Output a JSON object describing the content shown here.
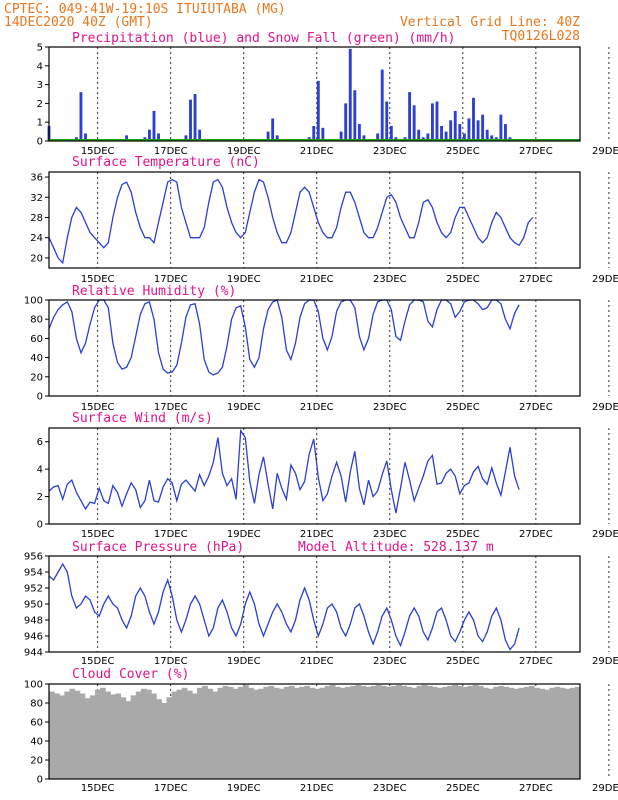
{
  "header": {
    "left_line1": "CPTEC:   049:41W-19:10S  ITUIUTABA (MG)",
    "left_line2": "14DEC2020 40Z (GMT)",
    "right_line1": "Vertical Grid Line: 40Z",
    "right_line2": "TQ0126L028"
  },
  "date_labels": [
    "15DEC",
    "17DEC",
    "19DEC",
    "21DEC",
    "23DEC",
    "25DEC",
    "27DEC",
    "29DEC"
  ],
  "colors": {
    "title": "#e0148c",
    "header": "#e8771e",
    "line": "#2b3fd6",
    "precip": "#2b3fd6",
    "snow": "#1fa31f",
    "cloud": "#a9a9a9"
  },
  "chart_data": [
    {
      "id": "precip",
      "type": "bar",
      "title": "Precipitation (blue) and Snow Fall (green) (mm/h)",
      "ylim": [
        0,
        5
      ],
      "yticks": [
        0,
        1,
        2,
        3,
        4,
        5
      ],
      "x_start": "14DEC 16Z",
      "x_step_hours": 3,
      "series": [
        {
          "name": "Precipitation (blue)",
          "values": [
            0.8,
            0.1,
            0,
            0,
            0,
            0,
            0.2,
            2.6,
            0.4,
            0,
            0,
            0,
            0,
            0,
            0,
            0,
            0.1,
            0.3,
            0,
            0,
            0,
            0.2,
            0.6,
            1.6,
            0.4,
            0,
            0,
            0,
            0,
            0,
            0.3,
            2.2,
            2.5,
            0.6,
            0,
            0,
            0,
            0,
            0,
            0,
            0,
            0,
            0,
            0,
            0,
            0,
            0,
            0,
            0.5,
            1.2,
            0.3,
            0,
            0,
            0,
            0,
            0,
            0,
            0.2,
            0.8,
            3.2,
            0.7,
            0.1,
            0,
            0,
            0.5,
            2.0,
            4.9,
            2.7,
            0.9,
            0.3,
            0,
            0,
            0.4,
            3.8,
            2.1,
            0.8,
            0.2,
            0,
            0.2,
            2.6,
            1.9,
            0.6,
            0.2,
            0.4,
            2.0,
            2.1,
            0.8,
            0.5,
            1.1,
            1.6,
            0.9,
            0.4,
            1.2,
            2.3,
            1.1,
            1.4,
            0.6,
            0.3,
            0.2,
            1.4,
            0.9,
            0.2
          ]
        },
        {
          "name": "Snow Fall (green)",
          "values": [
            0,
            0,
            0,
            0,
            0,
            0,
            0,
            0,
            0,
            0,
            0,
            0,
            0,
            0,
            0,
            0,
            0,
            0,
            0,
            0,
            0,
            0,
            0,
            0,
            0,
            0,
            0,
            0,
            0,
            0,
            0,
            0,
            0,
            0,
            0,
            0,
            0,
            0,
            0,
            0,
            0,
            0,
            0,
            0,
            0,
            0,
            0,
            0,
            0,
            0,
            0,
            0,
            0,
            0,
            0,
            0,
            0,
            0,
            0,
            0,
            0,
            0,
            0,
            0,
            0,
            0,
            0,
            0,
            0,
            0,
            0,
            0,
            0,
            0,
            0,
            0,
            0,
            0,
            0,
            0,
            0,
            0,
            0,
            0,
            0,
            0,
            0,
            0,
            0,
            0,
            0,
            0,
            0,
            0,
            0,
            0,
            0,
            0,
            0,
            0,
            0,
            0,
            0,
            0
          ]
        }
      ]
    },
    {
      "id": "temp",
      "type": "line",
      "title": "Surface Temperature (nC)",
      "ylim": [
        18,
        37
      ],
      "yticks": [
        20,
        24,
        28,
        32,
        36
      ],
      "x_start": "14DEC 16Z",
      "x_step_hours": 3,
      "values": [
        24,
        22,
        20,
        19,
        24,
        28,
        30,
        29,
        27,
        25,
        24,
        23,
        22,
        23,
        28,
        32,
        34.5,
        35,
        33,
        29,
        26,
        24,
        24,
        23,
        27,
        31,
        35,
        35.5,
        35,
        30,
        27,
        24,
        24,
        24,
        26,
        31,
        35,
        35.5,
        34,
        30,
        27,
        25,
        24,
        25,
        29,
        33,
        35.5,
        35,
        32,
        28,
        25,
        23,
        23,
        25,
        29,
        33,
        34,
        33,
        30,
        27,
        25,
        24,
        24,
        26,
        30,
        33,
        33,
        31,
        28,
        25,
        24,
        24,
        26,
        29,
        32,
        32.5,
        31,
        28,
        26,
        24,
        24,
        27,
        31,
        31.5,
        30,
        27,
        25,
        24,
        25,
        28,
        30,
        30,
        28,
        26,
        24,
        23,
        24,
        27,
        29,
        28,
        26,
        24,
        23,
        22.5,
        24,
        27,
        28
      ]
    },
    {
      "id": "rh",
      "type": "line",
      "title": "Relative Humidity (%)",
      "ylim": [
        0,
        100
      ],
      "yticks": [
        0,
        20,
        40,
        60,
        80,
        100
      ],
      "x_start": "14DEC 16Z",
      "x_step_hours": 3,
      "values": [
        70,
        82,
        90,
        95,
        98,
        88,
        60,
        45,
        55,
        75,
        92,
        100,
        100,
        92,
        55,
        35,
        28,
        30,
        40,
        62,
        85,
        96,
        98,
        80,
        45,
        28,
        24,
        25,
        32,
        55,
        82,
        95,
        96,
        75,
        38,
        25,
        22,
        24,
        30,
        52,
        80,
        92,
        94,
        72,
        38,
        30,
        40,
        70,
        90,
        98,
        100,
        82,
        48,
        38,
        55,
        82,
        96,
        100,
        100,
        88,
        60,
        48,
        62,
        88,
        98,
        100,
        100,
        92,
        62,
        48,
        60,
        85,
        98,
        100,
        100,
        90,
        62,
        58,
        78,
        95,
        100,
        100,
        98,
        78,
        72,
        90,
        100,
        100,
        96,
        82,
        88,
        98,
        100,
        100,
        96,
        90,
        92,
        100,
        100,
        96,
        80,
        70,
        86,
        95
      ]
    },
    {
      "id": "wind",
      "type": "line",
      "title": "Surface Wind (m/s)",
      "ylim": [
        0,
        7
      ],
      "yticks": [
        0,
        2,
        4,
        6
      ],
      "x_start": "14DEC 16Z",
      "x_step_hours": 3,
      "values": [
        2.4,
        2.7,
        2.8,
        1.8,
        2.9,
        3.2,
        2.3,
        1.7,
        1.1,
        1.6,
        1.5,
        2.6,
        1.7,
        1.5,
        2.8,
        2.3,
        1.3,
        2.2,
        3.0,
        2.5,
        1.2,
        1.7,
        3.2,
        1.7,
        1.6,
        2.7,
        3.3,
        3.0,
        1.7,
        2.9,
        3.2,
        2.8,
        2.4,
        3.6,
        2.8,
        3.5,
        4.5,
        6.3,
        3.7,
        2.8,
        3.3,
        1.8,
        6.8,
        6.3,
        3.1,
        1.5,
        3.6,
        4.9,
        2.9,
        1.1,
        3.7,
        2.6,
        1.8,
        4.3,
        3.7,
        2.5,
        3.1,
        5.1,
        6.2,
        3.4,
        1.7,
        2.2,
        3.5,
        4.5,
        3.5,
        1.6,
        3.8,
        5.3,
        2.6,
        1.4,
        3.2,
        2.0,
        2.4,
        3.6,
        4.6,
        2.5,
        0.8,
        2.6,
        4.5,
        3.2,
        1.7,
        2.6,
        3.5,
        4.6,
        5.0,
        2.9,
        3.0,
        3.7,
        4.0,
        3.5,
        2.2,
        2.8,
        3.0,
        3.8,
        4.2,
        3.3,
        2.9,
        4.1,
        3.0,
        2.1,
        3.8,
        5.6,
        3.5,
        2.5
      ]
    },
    {
      "id": "pres",
      "type": "line",
      "title": "Surface Pressure (hPa)",
      "annotation": "Model Altitude: 528.137 m",
      "ylim": [
        944,
        956
      ],
      "yticks": [
        944,
        946,
        948,
        950,
        952,
        954,
        956
      ],
      "x_start": "14DEC 16Z",
      "x_step_hours": 3,
      "values": [
        953.5,
        953,
        954,
        955,
        954,
        951,
        949.5,
        950,
        951,
        950.5,
        949,
        948.5,
        950,
        951,
        950,
        949.5,
        948,
        947,
        948.5,
        951,
        952,
        951,
        949,
        947.5,
        949,
        951.5,
        953,
        951,
        948,
        946.5,
        948,
        950,
        951,
        950,
        948,
        946,
        947,
        949.5,
        950.5,
        949,
        947,
        946,
        947.5,
        950,
        951.5,
        950,
        947.5,
        946,
        947.5,
        949,
        950,
        949,
        947.5,
        946.5,
        948,
        950.5,
        952,
        950.5,
        948,
        946,
        947.5,
        949.5,
        950,
        949,
        947,
        946,
        947.5,
        949.5,
        950,
        948.5,
        946.5,
        945,
        946.5,
        948.5,
        949.5,
        948,
        946,
        944.8,
        946.5,
        948.5,
        949.5,
        948.5,
        946.5,
        945.5,
        947,
        949,
        949.5,
        948,
        946,
        945.3,
        946.5,
        948,
        949,
        948,
        946,
        945.3,
        946.5,
        948.5,
        949.5,
        948,
        945.5,
        944.3,
        945,
        947
      ]
    },
    {
      "id": "cloud",
      "type": "area",
      "title": "Cloud Cover (%)",
      "ylim": [
        0,
        100
      ],
      "yticks": [
        0,
        20,
        40,
        60,
        80,
        100
      ],
      "x_start": "14DEC 16Z",
      "x_step_hours": 3,
      "values": [
        92,
        90,
        88,
        92,
        95,
        93,
        90,
        85,
        88,
        94,
        96,
        92,
        89,
        90,
        86,
        82,
        88,
        92,
        95,
        94,
        90,
        84,
        80,
        86,
        92,
        94,
        96,
        93,
        90,
        96,
        98,
        95,
        92,
        96,
        98,
        97,
        95,
        97,
        99,
        96,
        94,
        95,
        97,
        98,
        96,
        95,
        97,
        98,
        96,
        97,
        98,
        96,
        95,
        96,
        98,
        99,
        97,
        96,
        97,
        98,
        99,
        98,
        97,
        98,
        99,
        98,
        97,
        98,
        99,
        98,
        97,
        96,
        98,
        99,
        98,
        97,
        96,
        97,
        98,
        99,
        98,
        97,
        98,
        99,
        98,
        96,
        95,
        97,
        98,
        97,
        96,
        95,
        96,
        97,
        98,
        96,
        95,
        94,
        96,
        97,
        96,
        95,
        96,
        97
      ]
    }
  ]
}
